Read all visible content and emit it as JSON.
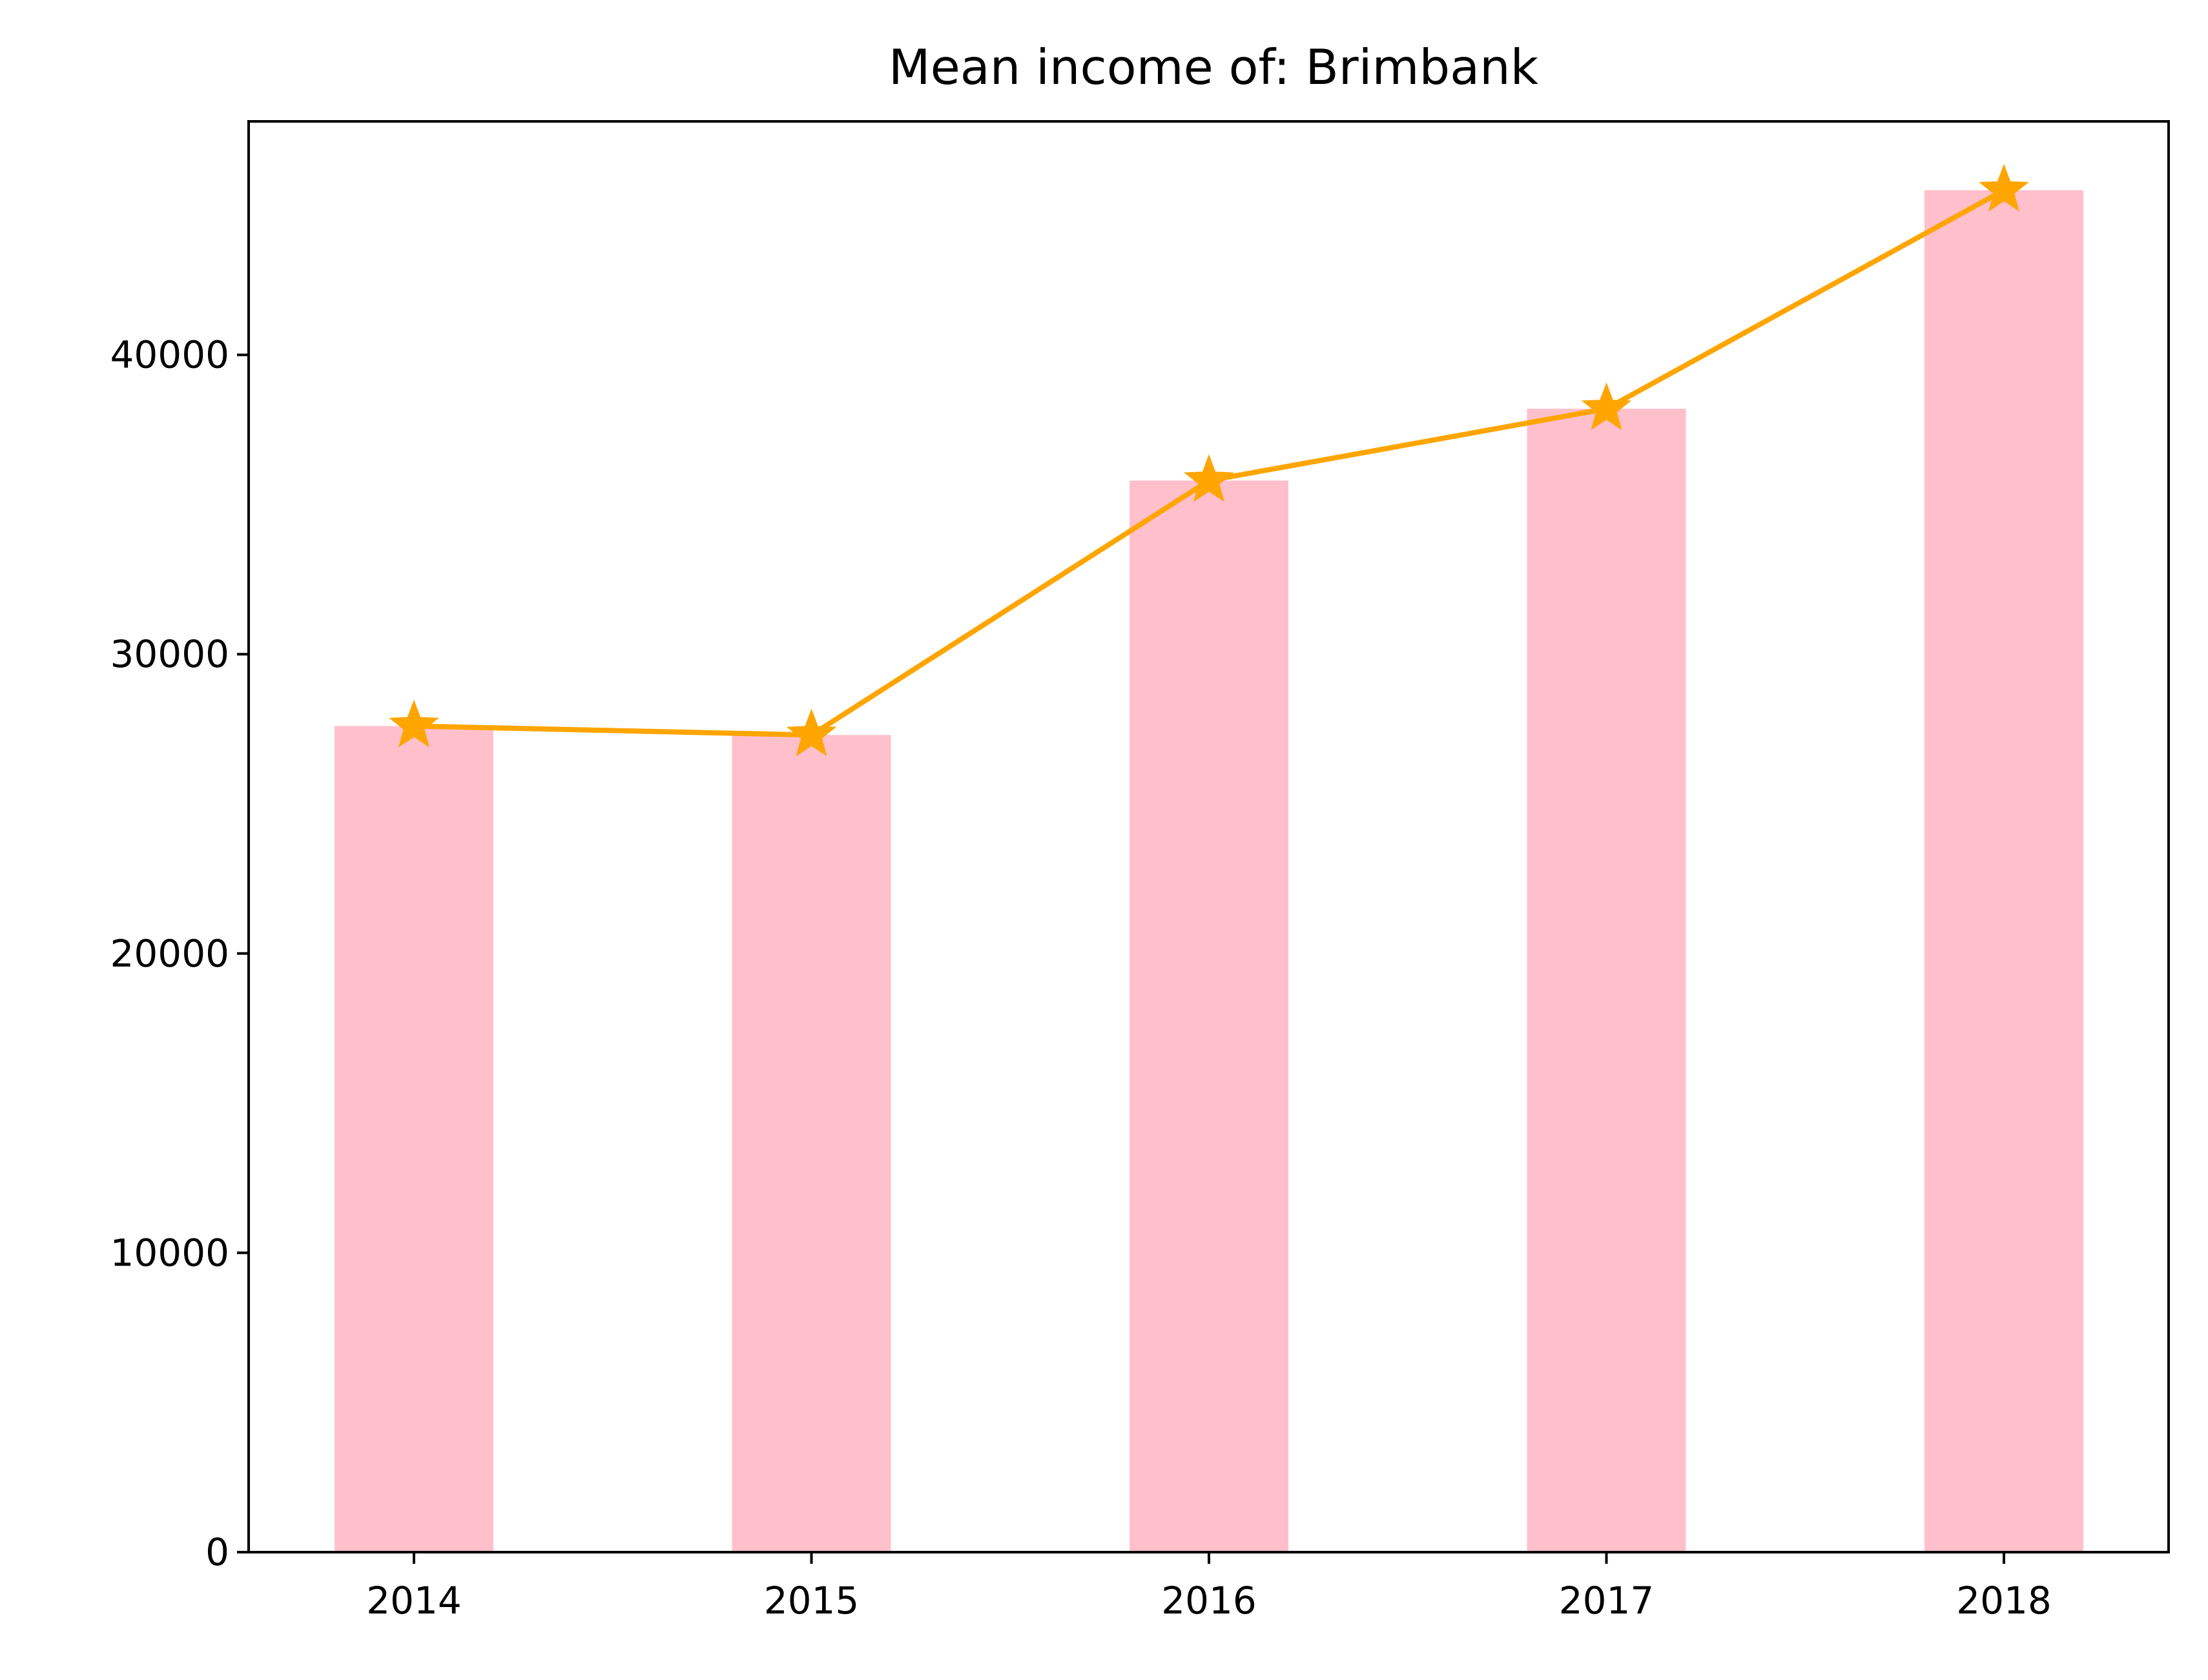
{
  "chart_data": {
    "type": "bar",
    "title": "Mean income of: Brimbank",
    "xlabel": "",
    "ylabel": "",
    "categories": [
      "2014",
      "2015",
      "2016",
      "2017",
      "2018"
    ],
    "series": [
      {
        "kind": "bar",
        "values": [
          27600,
          27300,
          35800,
          38200,
          45500
        ]
      },
      {
        "kind": "line",
        "marker": "star",
        "values": [
          27600,
          27300,
          35800,
          38200,
          45500
        ]
      }
    ],
    "ylim": [
      0,
      47800
    ],
    "yticks": [
      0,
      10000,
      20000,
      30000,
      40000
    ],
    "ytick_labels": [
      "0",
      "10000",
      "20000",
      "30000",
      "40000"
    ],
    "grid": false,
    "legend": "none",
    "colors": {
      "bar": "#ffc0cb",
      "line": "#ffa500",
      "axes": "#000000"
    }
  }
}
